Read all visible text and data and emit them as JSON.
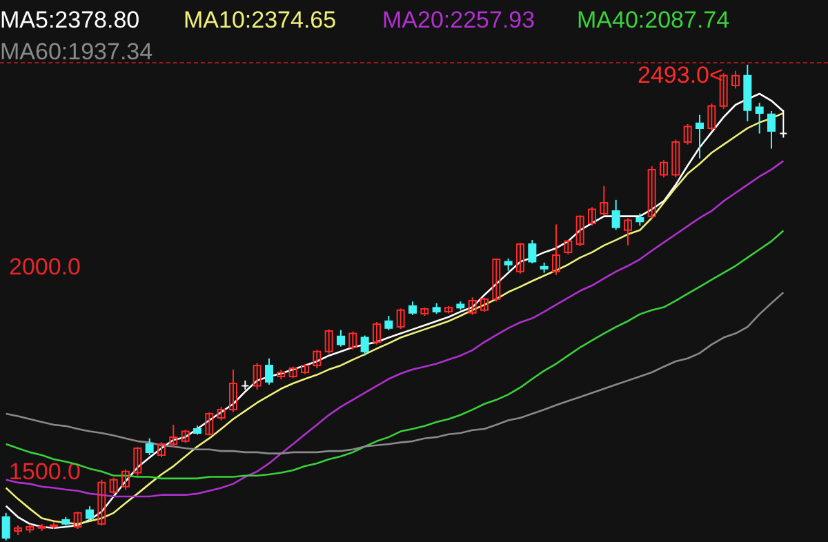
{
  "chart_data": {
    "type": "candlestick",
    "categories": [
      null,
      null,
      null,
      null,
      null,
      null,
      null,
      null,
      null,
      null,
      null,
      null,
      null,
      null,
      null,
      null,
      null,
      null,
      null,
      null,
      null,
      null,
      null,
      null,
      null,
      null,
      null,
      null,
      null,
      null,
      null,
      null,
      null,
      null,
      null,
      null,
      null,
      null,
      null,
      null,
      null,
      null,
      null,
      null,
      null,
      null,
      null,
      null,
      null,
      null,
      null,
      null,
      null,
      null,
      null,
      null,
      null,
      null,
      null,
      null,
      null,
      null,
      null,
      null,
      null,
      null
    ],
    "ohlc": [
      [
        1389,
        1399,
        1332,
        1338
      ],
      [
        1355,
        1369,
        1345,
        1362
      ],
      [
        1358,
        1372,
        1350,
        1365
      ],
      [
        1362,
        1372,
        1355,
        1365
      ],
      [
        1366,
        1376,
        1360,
        1369
      ],
      [
        1382,
        1389,
        1368,
        1372
      ],
      [
        1365,
        1402,
        1360,
        1399
      ],
      [
        1406,
        1415,
        1380,
        1386
      ],
      [
        1372,
        1480,
        1368,
        1473
      ],
      [
        1450,
        1485,
        1445,
        1480
      ],
      [
        1463,
        1505,
        1455,
        1500
      ],
      [
        1497,
        1560,
        1490,
        1557
      ],
      [
        1567,
        1581,
        1540,
        1547
      ],
      [
        1540,
        1572,
        1535,
        1567
      ],
      [
        1567,
        1614,
        1560,
        1584
      ],
      [
        1574,
        1602,
        1570,
        1598
      ],
      [
        1604,
        1612,
        1590,
        1594
      ],
      [
        1591,
        1645,
        1588,
        1641
      ],
      [
        1631,
        1658,
        1625,
        1651
      ],
      [
        1651,
        1749,
        1645,
        1715
      ],
      [
        1709,
        1722,
        1700,
        1709
      ],
      [
        1709,
        1765,
        1700,
        1759
      ],
      [
        1759,
        1776,
        1712,
        1719
      ],
      [
        1732,
        1748,
        1725,
        1742
      ],
      [
        1732,
        1756,
        1728,
        1752
      ],
      [
        1742,
        1762,
        1738,
        1759
      ],
      [
        1759,
        1797,
        1752,
        1793
      ],
      [
        1793,
        1847,
        1788,
        1843
      ],
      [
        1830,
        1845,
        1805,
        1810
      ],
      [
        1803,
        1842,
        1798,
        1837
      ],
      [
        1827,
        1832,
        1783,
        1793
      ],
      [
        1816,
        1865,
        1810,
        1860
      ],
      [
        1867,
        1880,
        1845,
        1850
      ],
      [
        1853,
        1898,
        1848,
        1894
      ],
      [
        1904,
        1915,
        1882,
        1887
      ],
      [
        1885,
        1900,
        1880,
        1897
      ],
      [
        1900,
        1911,
        1885,
        1890
      ],
      [
        1890,
        1904,
        1886,
        1900
      ],
      [
        1908,
        1915,
        1895,
        1900
      ],
      [
        1887,
        1925,
        1882,
        1917
      ],
      [
        1894,
        1924,
        1890,
        1921
      ],
      [
        1921,
        2020,
        1915,
        2018
      ],
      [
        2012,
        2020,
        1990,
        2005
      ],
      [
        1988,
        2058,
        1983,
        2055
      ],
      [
        2055,
        2065,
        2008,
        2012
      ],
      [
        2000,
        2010,
        1985,
        1995
      ],
      [
        1988,
        2103,
        1980,
        2028
      ],
      [
        2035,
        2065,
        2030,
        2062
      ],
      [
        2055,
        2125,
        2050,
        2123
      ],
      [
        2106,
        2145,
        2100,
        2140
      ],
      [
        2129,
        2197,
        2125,
        2156
      ],
      [
        2136,
        2163,
        2090,
        2096
      ],
      [
        2089,
        2118,
        2052,
        2113
      ],
      [
        2119,
        2130,
        2100,
        2110
      ],
      [
        2123,
        2245,
        2118,
        2237
      ],
      [
        2224,
        2260,
        2218,
        2254
      ],
      [
        2224,
        2310,
        2218,
        2304
      ],
      [
        2304,
        2348,
        2298,
        2342
      ],
      [
        2350,
        2370,
        2264,
        2338
      ],
      [
        2338,
        2398,
        2332,
        2392
      ],
      [
        2392,
        2472,
        2385,
        2466
      ],
      [
        2442,
        2478,
        2435,
        2466
      ],
      [
        2466,
        2493,
        2355,
        2382
      ],
      [
        2389,
        2400,
        2325,
        2375
      ],
      [
        2372,
        2380,
        2288,
        2331
      ],
      [
        2325,
        2382,
        2315,
        2325
      ]
    ],
    "series": [
      {
        "type": "line",
        "name": "MA5:2378.80",
        "color": "#ffffff",
        "values": [
          1416,
          1389,
          1372,
          1365,
          1362,
          1365,
          1369,
          1382,
          1402,
          1439,
          1476,
          1510,
          1534,
          1557,
          1577,
          1584,
          1604,
          1625,
          1645,
          1665,
          1695,
          1722,
          1732,
          1739,
          1749,
          1759,
          1769,
          1783,
          1793,
          1803,
          1810,
          1816,
          1827,
          1837,
          1847,
          1857,
          1867,
          1877,
          1890,
          1901,
          1931,
          1958,
          1985,
          2012,
          2022,
          2035,
          2045,
          2062,
          2089,
          2106,
          2123,
          2123,
          2123,
          2123,
          2140,
          2160,
          2200,
          2247,
          2291,
          2328,
          2365,
          2395,
          2409,
          2422,
          2405,
          2379
        ]
      },
      {
        "type": "line",
        "name": "MA10:2374.65",
        "color": "#f0f07a",
        "values": [
          1460,
          1433,
          1409,
          1386,
          1379,
          1375,
          1372,
          1379,
          1386,
          1399,
          1423,
          1446,
          1470,
          1493,
          1513,
          1537,
          1561,
          1581,
          1604,
          1628,
          1648,
          1668,
          1685,
          1702,
          1715,
          1726,
          1736,
          1749,
          1759,
          1773,
          1786,
          1800,
          1813,
          1827,
          1837,
          1847,
          1857,
          1867,
          1880,
          1894,
          1907,
          1921,
          1938,
          1951,
          1965,
          1978,
          1991,
          2005,
          2022,
          2035,
          2052,
          2065,
          2079,
          2089,
          2119,
          2156,
          2193,
          2227,
          2251,
          2278,
          2298,
          2318,
          2338,
          2352,
          2362,
          2375
        ]
      },
      {
        "type": "line",
        "name": "MA20:2257.93",
        "color": "#b030d0",
        "values": [
          1480,
          1473,
          1470,
          1463,
          1460,
          1456,
          1453,
          1446,
          1443,
          1439,
          1439,
          1439,
          1439,
          1443,
          1443,
          1443,
          1446,
          1453,
          1460,
          1470,
          1487,
          1500,
          1520,
          1544,
          1567,
          1591,
          1614,
          1638,
          1658,
          1675,
          1692,
          1709,
          1726,
          1739,
          1749,
          1756,
          1763,
          1773,
          1783,
          1796,
          1816,
          1833,
          1850,
          1864,
          1874,
          1890,
          1907,
          1924,
          1941,
          1954,
          1971,
          1988,
          2002,
          2018,
          2039,
          2059,
          2079,
          2099,
          2119,
          2136,
          2160,
          2180,
          2200,
          2220,
          2237,
          2258
        ]
      },
      {
        "type": "line",
        "name": "MA40:2087.74",
        "color": "#3ad23a",
        "values": [
          1567,
          1557,
          1547,
          1540,
          1530,
          1524,
          1517,
          1507,
          1500,
          1490,
          1490,
          1487,
          1487,
          1483,
          1483,
          1483,
          1483,
          1487,
          1487,
          1487,
          1490,
          1490,
          1493,
          1497,
          1503,
          1513,
          1520,
          1530,
          1537,
          1547,
          1561,
          1574,
          1584,
          1598,
          1604,
          1611,
          1621,
          1628,
          1638,
          1651,
          1665,
          1675,
          1688,
          1705,
          1726,
          1746,
          1763,
          1783,
          1803,
          1820,
          1837,
          1853,
          1867,
          1884,
          1894,
          1901,
          1917,
          1934,
          1951,
          1968,
          1985,
          2002,
          2022,
          2042,
          2062,
          2088
        ]
      },
      {
        "type": "line",
        "name": "MA60:1937.34",
        "color": "#8a8a8a",
        "values": [
          1641,
          1635,
          1628,
          1621,
          1614,
          1611,
          1604,
          1598,
          1594,
          1588,
          1581,
          1574,
          1571,
          1564,
          1561,
          1557,
          1554,
          1554,
          1550,
          1550,
          1547,
          1547,
          1544,
          1544,
          1547,
          1547,
          1547,
          1550,
          1550,
          1554,
          1561,
          1564,
          1567,
          1571,
          1574,
          1581,
          1584,
          1591,
          1594,
          1601,
          1604,
          1614,
          1625,
          1631,
          1641,
          1651,
          1662,
          1672,
          1682,
          1692,
          1702,
          1712,
          1722,
          1732,
          1742,
          1756,
          1769,
          1776,
          1789,
          1810,
          1827,
          1837,
          1853,
          1884,
          1911,
          1937
        ]
      }
    ],
    "ylim": [
      1328,
      2496
    ],
    "yticks": [
      {
        "value": 1500,
        "label": "1500.0"
      },
      {
        "value": 2000,
        "label": "2000.0"
      }
    ],
    "tick_labels": "y",
    "legend": "top left",
    "annotations": [
      "2493.0<"
    ]
  }
}
